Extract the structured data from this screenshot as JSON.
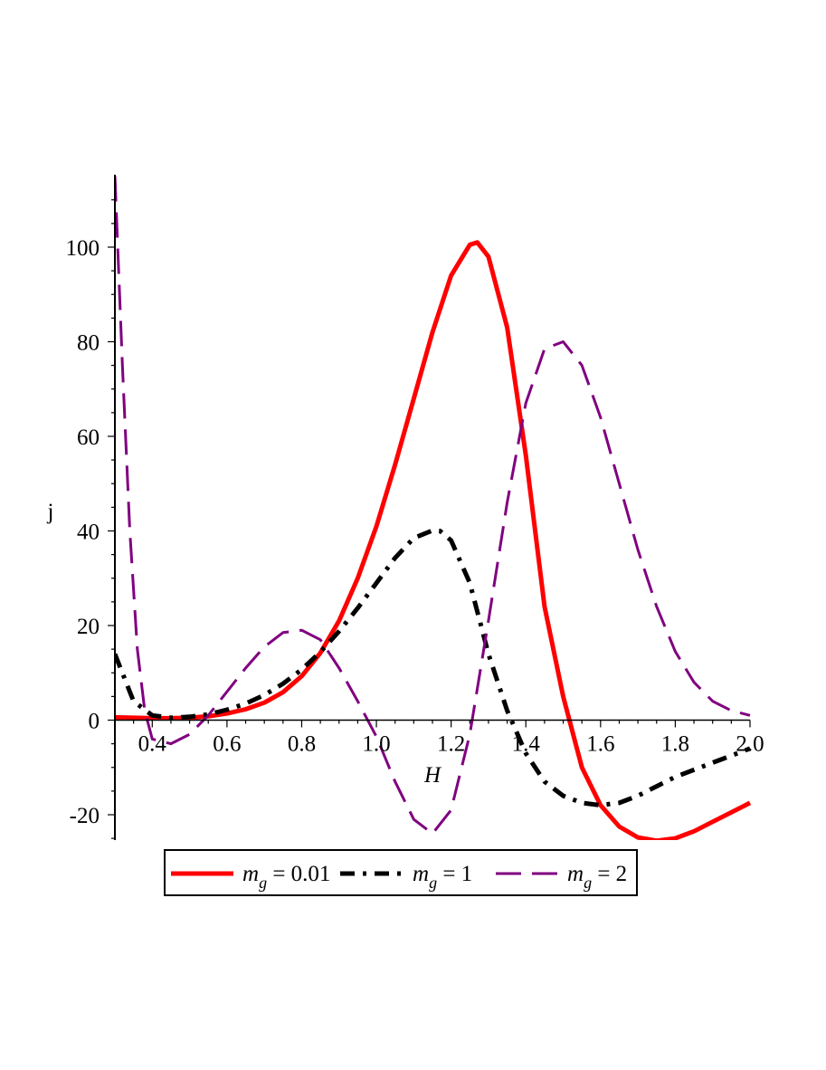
{
  "chart_data": {
    "type": "line",
    "title": "",
    "xlabel": "H",
    "ylabel": "j",
    "xlim": [
      0.3,
      2.0
    ],
    "ylim": [
      -26,
      115
    ],
    "grid": false,
    "legend_position": "bottom",
    "x_ticks": [
      {
        "value": 0.4,
        "label": "0.4"
      },
      {
        "value": 0.6,
        "label": "0.6"
      },
      {
        "value": 0.8,
        "label": "0.8"
      },
      {
        "value": 1.0,
        "label": "1.0"
      },
      {
        "value": 1.2,
        "label": "1.2"
      },
      {
        "value": 1.4,
        "label": "1.4"
      },
      {
        "value": 1.6,
        "label": "1.6"
      },
      {
        "value": 1.8,
        "label": "1.8"
      },
      {
        "value": 2.0,
        "label": "2.0"
      }
    ],
    "y_ticks": [
      {
        "value": -20,
        "label": "-20"
      },
      {
        "value": 0,
        "label": "0"
      },
      {
        "value": 20,
        "label": "20"
      },
      {
        "value": 40,
        "label": "40"
      },
      {
        "value": 60,
        "label": "60"
      },
      {
        "value": 80,
        "label": "80"
      },
      {
        "value": 100,
        "label": "100"
      }
    ],
    "series": [
      {
        "legend_symbol": "m",
        "legend_subscript": "g",
        "legend_value": " = 0.01",
        "color": "#ff0000",
        "style": "solid",
        "x": [
          0.3,
          0.35,
          0.4,
          0.45,
          0.5,
          0.55,
          0.6,
          0.65,
          0.7,
          0.75,
          0.8,
          0.85,
          0.9,
          0.95,
          1.0,
          1.05,
          1.1,
          1.15,
          1.2,
          1.25,
          1.27,
          1.3,
          1.35,
          1.4,
          1.45,
          1.5,
          1.55,
          1.6,
          1.65,
          1.7,
          1.75,
          1.8,
          1.85,
          1.9,
          1.95,
          2.0
        ],
        "y": [
          0.6,
          0.5,
          0.4,
          0.4,
          0.5,
          0.8,
          1.4,
          2.3,
          3.7,
          5.9,
          9.3,
          14.2,
          21.0,
          30.0,
          41.0,
          54.0,
          68.0,
          82.0,
          94.0,
          100.5,
          101.0,
          98.0,
          83.0,
          56.0,
          24.0,
          5.0,
          -10.0,
          -18.0,
          -22.5,
          -24.8,
          -25.5,
          -25.0,
          -23.5,
          -21.5,
          -19.5,
          -17.5
        ]
      },
      {
        "legend_symbol": "m",
        "legend_subscript": "g",
        "legend_value": " = 1",
        "color": "#000000",
        "style": "dashdot",
        "x": [
          0.3,
          0.35,
          0.4,
          0.45,
          0.5,
          0.55,
          0.6,
          0.65,
          0.7,
          0.75,
          0.8,
          0.85,
          0.9,
          0.95,
          1.0,
          1.05,
          1.1,
          1.15,
          1.17,
          1.2,
          1.25,
          1.3,
          1.35,
          1.4,
          1.45,
          1.5,
          1.55,
          1.6,
          1.65,
          1.7,
          1.75,
          1.8,
          1.85,
          1.9,
          1.95,
          2.0
        ],
        "y": [
          14.0,
          4.0,
          1.0,
          0.5,
          0.7,
          1.2,
          2.2,
          3.5,
          5.3,
          7.7,
          10.7,
          14.4,
          18.8,
          23.7,
          29.0,
          34.3,
          38.5,
          40.1,
          40.0,
          38.0,
          29.0,
          14.0,
          2.0,
          -7.0,
          -13.0,
          -16.0,
          -17.5,
          -18.0,
          -17.5,
          -16.0,
          -14.0,
          -12.0,
          -10.5,
          -9.0,
          -7.5,
          -6.0
        ]
      },
      {
        "legend_symbol": "m",
        "legend_subscript": "g",
        "legend_value": " = 2",
        "color": "#800080",
        "style": "dashed",
        "x": [
          0.3,
          0.32,
          0.34,
          0.36,
          0.38,
          0.4,
          0.45,
          0.5,
          0.55,
          0.6,
          0.65,
          0.7,
          0.75,
          0.8,
          0.85,
          0.9,
          0.95,
          1.0,
          1.05,
          1.1,
          1.15,
          1.2,
          1.25,
          1.3,
          1.35,
          1.4,
          1.45,
          1.5,
          1.55,
          1.6,
          1.65,
          1.7,
          1.75,
          1.8,
          1.85,
          1.9,
          1.95,
          2.0
        ],
        "y": [
          115.0,
          75.0,
          40.0,
          15.0,
          2.0,
          -4.0,
          -5.0,
          -3.0,
          1.0,
          6.0,
          11.0,
          15.5,
          18.5,
          19.0,
          17.0,
          11.0,
          4.0,
          -3.5,
          -13.0,
          -21.0,
          -24.0,
          -19.0,
          -3.0,
          21.0,
          46.0,
          67.0,
          78.5,
          80.0,
          75.0,
          64.0,
          50.0,
          36.0,
          24.0,
          14.5,
          8.0,
          4.0,
          2.0,
          1.0
        ]
      }
    ]
  }
}
